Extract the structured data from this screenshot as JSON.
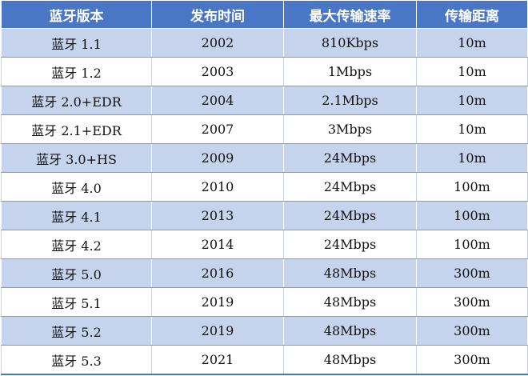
{
  "table": {
    "headers": [
      "蓝牙版本",
      "发布时间",
      "最大传输速率",
      "传输距离"
    ],
    "rows": [
      [
        "蓝牙 1.1",
        "2002",
        "810Kbps",
        "10m"
      ],
      [
        "蓝牙 1.2",
        "2003",
        "1Mbps",
        "10m"
      ],
      [
        "蓝牙 2.0+EDR",
        "2004",
        "2.1Mbps",
        "10m"
      ],
      [
        "蓝牙 2.1+EDR",
        "2007",
        "3Mbps",
        "10m"
      ],
      [
        "蓝牙 3.0+HS",
        "2009",
        "24Mbps",
        "10m"
      ],
      [
        "蓝牙 4.0",
        "2010",
        "24Mbps",
        "100m"
      ],
      [
        "蓝牙 4.1",
        "2013",
        "24Mbps",
        "100m"
      ],
      [
        "蓝牙 4.2",
        "2014",
        "24Mbps",
        "100m"
      ],
      [
        "蓝牙 5.0",
        "2016",
        "48Mbps",
        "300m"
      ],
      [
        "蓝牙 5.1",
        "2019",
        "48Mbps",
        "300m"
      ],
      [
        "蓝牙 5.2",
        "2019",
        "48Mbps",
        "300m"
      ],
      [
        "蓝牙 5.3",
        "2021",
        "48Mbps",
        "300m"
      ]
    ]
  },
  "colors": {
    "header_bg": "#4a77c5",
    "band_bg": "#c5d3ed"
  }
}
